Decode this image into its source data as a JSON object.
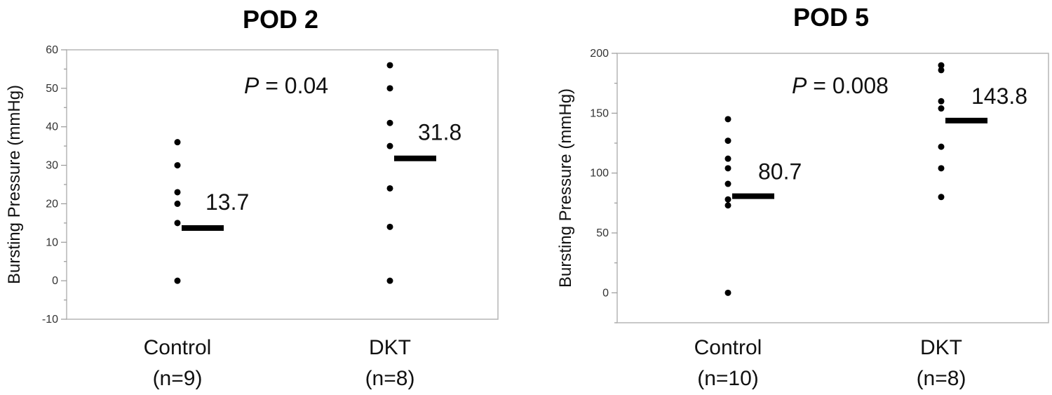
{
  "chart_data": [
    {
      "type": "scatter",
      "title": "POD 2",
      "ylabel": "Bursting Pressure (mmHg)",
      "ylim": [
        -10,
        60
      ],
      "yticks": [
        -10,
        0,
        10,
        20,
        30,
        40,
        50,
        60
      ],
      "annotation": {
        "prefix": "P",
        "text": " = 0.04"
      },
      "groups": [
        {
          "label": "Control",
          "n_label": "(n=9)",
          "values": [
            36,
            30,
            23,
            20,
            15,
            0
          ],
          "mean": 13.7,
          "mean_label": "13.7"
        },
        {
          "label": "DKT",
          "n_label": "(n=8)",
          "values": [
            56,
            50,
            41,
            35,
            24,
            14,
            0
          ],
          "mean": 31.8,
          "mean_label": "31.8"
        }
      ]
    },
    {
      "type": "scatter",
      "title": "POD 5",
      "ylabel": "Bursting Pressure (mmHg)",
      "ylim": [
        -25,
        200
      ],
      "yticks": [
        0,
        50,
        100,
        150,
        200
      ],
      "annotation": {
        "prefix": "P",
        "text": " = 0.008"
      },
      "groups": [
        {
          "label": "Control",
          "n_label": "(n=10)",
          "values": [
            145,
            127,
            112,
            104,
            91,
            78,
            73,
            0
          ],
          "mean": 80.7,
          "mean_label": "80.7"
        },
        {
          "label": "DKT",
          "n_label": "(n=8)",
          "values": [
            190,
            186,
            160,
            154,
            122,
            104,
            80
          ],
          "mean": 143.8,
          "mean_label": "143.8"
        }
      ]
    }
  ]
}
